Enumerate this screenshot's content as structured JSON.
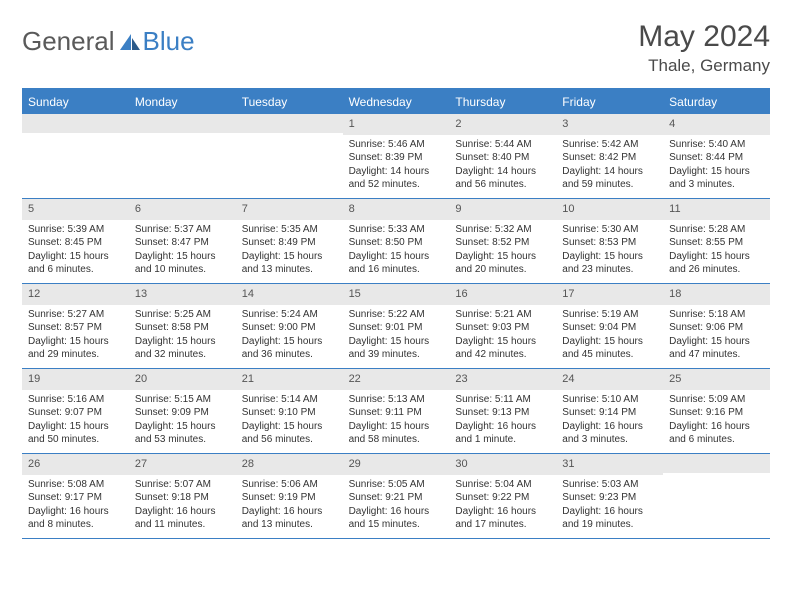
{
  "brand": {
    "part1": "General",
    "part2": "Blue"
  },
  "title": "May 2024",
  "location": "Thale, Germany",
  "colors": {
    "accent": "#3b7fc4",
    "dayHeaderText": "#ffffff",
    "dayNumBg": "#e8e8e8",
    "text": "#333333",
    "titleText": "#4a4a4a"
  },
  "dayNames": [
    "Sunday",
    "Monday",
    "Tuesday",
    "Wednesday",
    "Thursday",
    "Friday",
    "Saturday"
  ],
  "weeks": [
    [
      null,
      null,
      null,
      {
        "n": "1",
        "sunrise": "5:46 AM",
        "sunset": "8:39 PM",
        "daylight": "14 hours and 52 minutes."
      },
      {
        "n": "2",
        "sunrise": "5:44 AM",
        "sunset": "8:40 PM",
        "daylight": "14 hours and 56 minutes."
      },
      {
        "n": "3",
        "sunrise": "5:42 AM",
        "sunset": "8:42 PM",
        "daylight": "14 hours and 59 minutes."
      },
      {
        "n": "4",
        "sunrise": "5:40 AM",
        "sunset": "8:44 PM",
        "daylight": "15 hours and 3 minutes."
      }
    ],
    [
      {
        "n": "5",
        "sunrise": "5:39 AM",
        "sunset": "8:45 PM",
        "daylight": "15 hours and 6 minutes."
      },
      {
        "n": "6",
        "sunrise": "5:37 AM",
        "sunset": "8:47 PM",
        "daylight": "15 hours and 10 minutes."
      },
      {
        "n": "7",
        "sunrise": "5:35 AM",
        "sunset": "8:49 PM",
        "daylight": "15 hours and 13 minutes."
      },
      {
        "n": "8",
        "sunrise": "5:33 AM",
        "sunset": "8:50 PM",
        "daylight": "15 hours and 16 minutes."
      },
      {
        "n": "9",
        "sunrise": "5:32 AM",
        "sunset": "8:52 PM",
        "daylight": "15 hours and 20 minutes."
      },
      {
        "n": "10",
        "sunrise": "5:30 AM",
        "sunset": "8:53 PM",
        "daylight": "15 hours and 23 minutes."
      },
      {
        "n": "11",
        "sunrise": "5:28 AM",
        "sunset": "8:55 PM",
        "daylight": "15 hours and 26 minutes."
      }
    ],
    [
      {
        "n": "12",
        "sunrise": "5:27 AM",
        "sunset": "8:57 PM",
        "daylight": "15 hours and 29 minutes."
      },
      {
        "n": "13",
        "sunrise": "5:25 AM",
        "sunset": "8:58 PM",
        "daylight": "15 hours and 32 minutes."
      },
      {
        "n": "14",
        "sunrise": "5:24 AM",
        "sunset": "9:00 PM",
        "daylight": "15 hours and 36 minutes."
      },
      {
        "n": "15",
        "sunrise": "5:22 AM",
        "sunset": "9:01 PM",
        "daylight": "15 hours and 39 minutes."
      },
      {
        "n": "16",
        "sunrise": "5:21 AM",
        "sunset": "9:03 PM",
        "daylight": "15 hours and 42 minutes."
      },
      {
        "n": "17",
        "sunrise": "5:19 AM",
        "sunset": "9:04 PM",
        "daylight": "15 hours and 45 minutes."
      },
      {
        "n": "18",
        "sunrise": "5:18 AM",
        "sunset": "9:06 PM",
        "daylight": "15 hours and 47 minutes."
      }
    ],
    [
      {
        "n": "19",
        "sunrise": "5:16 AM",
        "sunset": "9:07 PM",
        "daylight": "15 hours and 50 minutes."
      },
      {
        "n": "20",
        "sunrise": "5:15 AM",
        "sunset": "9:09 PM",
        "daylight": "15 hours and 53 minutes."
      },
      {
        "n": "21",
        "sunrise": "5:14 AM",
        "sunset": "9:10 PM",
        "daylight": "15 hours and 56 minutes."
      },
      {
        "n": "22",
        "sunrise": "5:13 AM",
        "sunset": "9:11 PM",
        "daylight": "15 hours and 58 minutes."
      },
      {
        "n": "23",
        "sunrise": "5:11 AM",
        "sunset": "9:13 PM",
        "daylight": "16 hours and 1 minute."
      },
      {
        "n": "24",
        "sunrise": "5:10 AM",
        "sunset": "9:14 PM",
        "daylight": "16 hours and 3 minutes."
      },
      {
        "n": "25",
        "sunrise": "5:09 AM",
        "sunset": "9:16 PM",
        "daylight": "16 hours and 6 minutes."
      }
    ],
    [
      {
        "n": "26",
        "sunrise": "5:08 AM",
        "sunset": "9:17 PM",
        "daylight": "16 hours and 8 minutes."
      },
      {
        "n": "27",
        "sunrise": "5:07 AM",
        "sunset": "9:18 PM",
        "daylight": "16 hours and 11 minutes."
      },
      {
        "n": "28",
        "sunrise": "5:06 AM",
        "sunset": "9:19 PM",
        "daylight": "16 hours and 13 minutes."
      },
      {
        "n": "29",
        "sunrise": "5:05 AM",
        "sunset": "9:21 PM",
        "daylight": "16 hours and 15 minutes."
      },
      {
        "n": "30",
        "sunrise": "5:04 AM",
        "sunset": "9:22 PM",
        "daylight": "16 hours and 17 minutes."
      },
      {
        "n": "31",
        "sunrise": "5:03 AM",
        "sunset": "9:23 PM",
        "daylight": "16 hours and 19 minutes."
      },
      null
    ]
  ],
  "labels": {
    "sunrise": "Sunrise:",
    "sunset": "Sunset:",
    "daylight": "Daylight:"
  }
}
